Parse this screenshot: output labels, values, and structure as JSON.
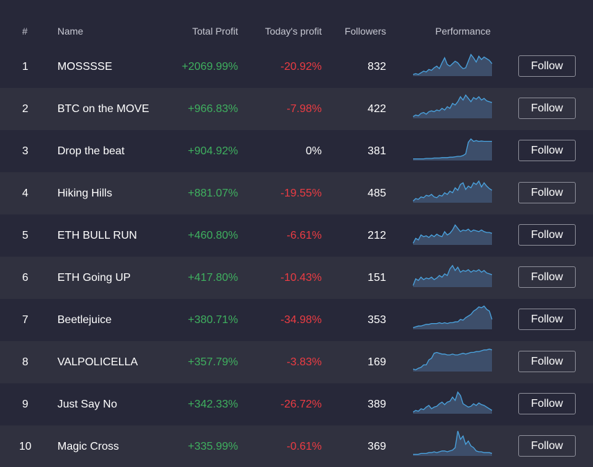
{
  "colors": {
    "background": "#272839",
    "row_alt": "#30313f",
    "positive": "#3fb05f",
    "negative": "#ec3c43",
    "neutral": "#ffffff",
    "spark_line": "#4aa3df",
    "spark_fill": "#3d4e6a"
  },
  "columns": {
    "rank": "#",
    "name": "Name",
    "total_profit": "Total Profit",
    "today_profit": "Today's profit",
    "followers": "Followers",
    "performance": "Performance"
  },
  "rows": [
    {
      "rank": "1",
      "name": "MOSSSSE",
      "total_profit": "+2069.99%",
      "today_profit": "-20.92%",
      "today_sign": "negative",
      "followers": "832",
      "follow_label": "Follow",
      "performance": [
        2,
        3,
        2,
        4,
        6,
        5,
        8,
        7,
        10,
        12,
        9,
        16,
        22,
        14,
        12,
        15,
        18,
        16,
        12,
        9,
        10,
        18,
        26,
        22,
        17,
        24,
        20,
        23,
        21,
        19,
        15
      ]
    },
    {
      "rank": "2",
      "name": "BTC on the MOVE",
      "total_profit": "+966.83%",
      "today_profit": "-7.98%",
      "today_sign": "negative",
      "followers": "422",
      "follow_label": "Follow",
      "performance": [
        2,
        4,
        3,
        6,
        7,
        5,
        8,
        9,
        8,
        10,
        9,
        12,
        10,
        14,
        12,
        18,
        16,
        20,
        26,
        22,
        28,
        24,
        20,
        25,
        23,
        26,
        22,
        24,
        21,
        20,
        19
      ]
    },
    {
      "rank": "3",
      "name": "Drop the beat",
      "total_profit": "+904.92%",
      "today_profit": "0%",
      "today_sign": "neutral",
      "followers": "381",
      "follow_label": "Follow",
      "performance": [
        2,
        2,
        2,
        2,
        2,
        2.5,
        2.5,
        2.5,
        3,
        3,
        3,
        3.5,
        3.5,
        3.5,
        4,
        4,
        4.5,
        5,
        5,
        6,
        8,
        22,
        26,
        23,
        24,
        23,
        23.5,
        23,
        23,
        23,
        23
      ]
    },
    {
      "rank": "4",
      "name": "Hiking Hills",
      "total_profit": "+881.07%",
      "today_profit": "-19.55%",
      "today_sign": "negative",
      "followers": "485",
      "follow_label": "Follow",
      "performance": [
        2,
        5,
        4,
        7,
        6,
        9,
        8,
        10,
        7,
        6,
        9,
        8,
        12,
        10,
        14,
        12,
        18,
        15,
        22,
        24,
        16,
        20,
        18,
        24,
        22,
        26,
        19,
        24,
        20,
        17,
        15
      ]
    },
    {
      "rank": "5",
      "name": "ETH BULL RUN",
      "total_profit": "+460.80%",
      "today_profit": "-6.61%",
      "today_sign": "negative",
      "followers": "212",
      "follow_label": "Follow",
      "performance": [
        2,
        8,
        6,
        12,
        10,
        11,
        9,
        12,
        10,
        13,
        11,
        10,
        16,
        12,
        14,
        18,
        24,
        20,
        16,
        18,
        17,
        19,
        16,
        18,
        17,
        16,
        18,
        16,
        15,
        15,
        14
      ]
    },
    {
      "rank": "6",
      "name": "ETH Going UP",
      "total_profit": "+417.80%",
      "today_profit": "-10.43%",
      "today_sign": "negative",
      "followers": "151",
      "follow_label": "Follow",
      "performance": [
        2,
        10,
        8,
        12,
        9,
        11,
        10,
        12,
        9,
        11,
        14,
        12,
        16,
        14,
        22,
        26,
        20,
        24,
        18,
        20,
        19,
        21,
        18,
        20,
        19,
        21,
        18,
        20,
        17,
        16,
        15
      ]
    },
    {
      "rank": "7",
      "name": "Beetlejuice",
      "total_profit": "+380.71%",
      "today_profit": "-34.98%",
      "today_sign": "negative",
      "followers": "353",
      "follow_label": "Follow",
      "performance": [
        2,
        3,
        4,
        4,
        5,
        6,
        6,
        7,
        7,
        7,
        8,
        7,
        8,
        7,
        8,
        8,
        9,
        9,
        12,
        11,
        14,
        16,
        18,
        22,
        24,
        27,
        26,
        28,
        24,
        22,
        12
      ]
    },
    {
      "rank": "8",
      "name": "VALPOLICELLA",
      "total_profit": "+357.79%",
      "today_profit": "-3.83%",
      "today_sign": "negative",
      "followers": "169",
      "follow_label": "Follow",
      "performance": [
        3,
        2,
        4,
        5,
        8,
        8,
        14,
        16,
        22,
        23,
        22,
        21,
        21,
        20,
        20,
        21,
        20,
        20,
        21,
        22,
        21,
        22,
        23,
        23,
        24,
        24,
        25,
        26,
        26,
        27,
        26
      ]
    },
    {
      "rank": "9",
      "name": "Just Say No",
      "total_profit": "+342.33%",
      "today_profit": "-26.72%",
      "today_sign": "negative",
      "followers": "389",
      "follow_label": "Follow",
      "performance": [
        2,
        4,
        3,
        6,
        5,
        8,
        10,
        6,
        8,
        9,
        12,
        14,
        11,
        14,
        15,
        20,
        16,
        26,
        22,
        12,
        10,
        8,
        9,
        12,
        10,
        13,
        11,
        10,
        8,
        6,
        4
      ]
    },
    {
      "rank": "10",
      "name": "Magic Cross",
      "total_profit": "+335.99%",
      "today_profit": "-0.61%",
      "today_sign": "negative",
      "followers": "369",
      "follow_label": "Follow",
      "performance": [
        2,
        2,
        2,
        3,
        3,
        3,
        4,
        4,
        5,
        4,
        5,
        6,
        6,
        5,
        6,
        7,
        10,
        30,
        20,
        24,
        14,
        18,
        12,
        10,
        6,
        5,
        5,
        4,
        4,
        4,
        3
      ]
    }
  ]
}
